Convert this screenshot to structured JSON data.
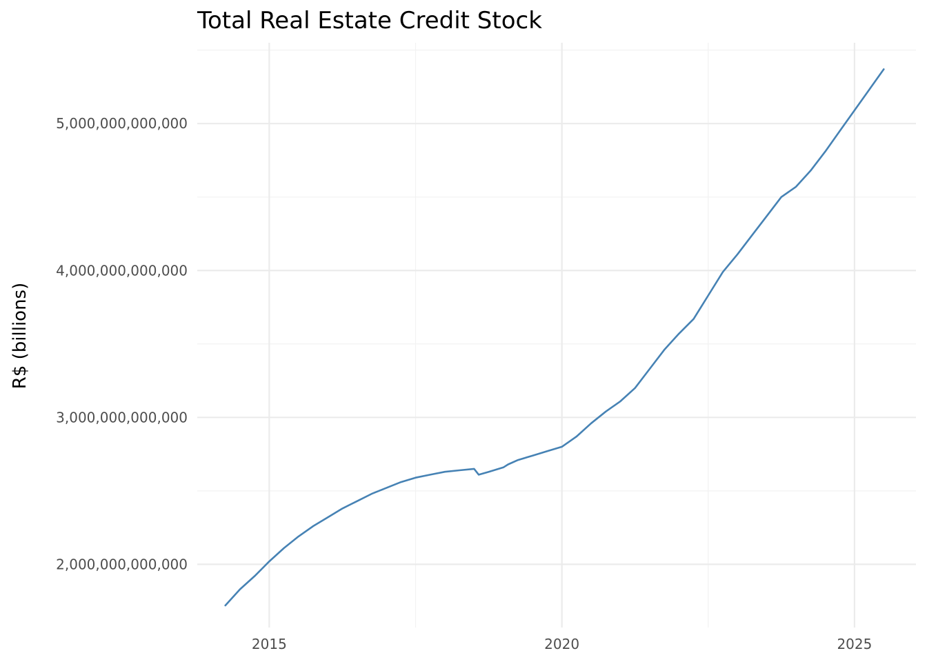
{
  "chart_data": {
    "type": "line",
    "title": "Total Real Estate Credit Stock",
    "xlabel": "",
    "ylabel": "R$ (billions)",
    "x_ticks": [
      2015,
      2020,
      2025
    ],
    "x_tick_labels": [
      "2015",
      "2020",
      "2025"
    ],
    "y_ticks": [
      2000000000000,
      3000000000000,
      4000000000000,
      5000000000000
    ],
    "y_tick_labels": [
      "2,000,000,000,000",
      "3,000,000,000,000",
      "4,000,000,000,000",
      "5,000,000,000,000"
    ],
    "xlim": [
      2013.77,
      2026.05
    ],
    "ylim": [
      1570000000000,
      5550000000000
    ],
    "grid": true,
    "legend": "none",
    "color": "#4682b4",
    "series": [
      {
        "x": [
          2014.25,
          2014.5,
          2014.75,
          2015.0,
          2015.25,
          2015.5,
          2015.75,
          2016.0,
          2016.25,
          2016.5,
          2016.75,
          2017.0,
          2017.25,
          2017.5,
          2017.75,
          2018.0,
          2018.25,
          2018.5,
          2018.58,
          2018.75,
          2019.0,
          2019.08,
          2019.25,
          2019.5,
          2019.75,
          2020.0,
          2020.25,
          2020.5,
          2020.75,
          2021.0,
          2021.25,
          2021.5,
          2021.75,
          2022.0,
          2022.25,
          2022.5,
          2022.75,
          2023.0,
          2023.25,
          2023.5,
          2023.75,
          2024.0,
          2024.25,
          2024.5,
          2024.75,
          2025.0,
          2025.25,
          2025.5
        ],
        "y": [
          1720000000000,
          1830000000000,
          1920000000000,
          2020000000000,
          2110000000000,
          2190000000000,
          2260000000000,
          2320000000000,
          2380000000000,
          2430000000000,
          2480000000000,
          2520000000000,
          2560000000000,
          2590000000000,
          2610000000000,
          2630000000000,
          2640000000000,
          2650000000000,
          2610000000000,
          2630000000000,
          2660000000000,
          2680000000000,
          2710000000000,
          2740000000000,
          2770000000000,
          2800000000000,
          2870000000000,
          2960000000000,
          3040000000000,
          3110000000000,
          3200000000000,
          3330000000000,
          3460000000000,
          3570000000000,
          3670000000000,
          3830000000000,
          3990000000000,
          4110000000000,
          4240000000000,
          4370000000000,
          4500000000000,
          4570000000000,
          4680000000000,
          4810000000000,
          4950000000000,
          5090000000000,
          5230000000000,
          5370000000000
        ]
      }
    ]
  }
}
